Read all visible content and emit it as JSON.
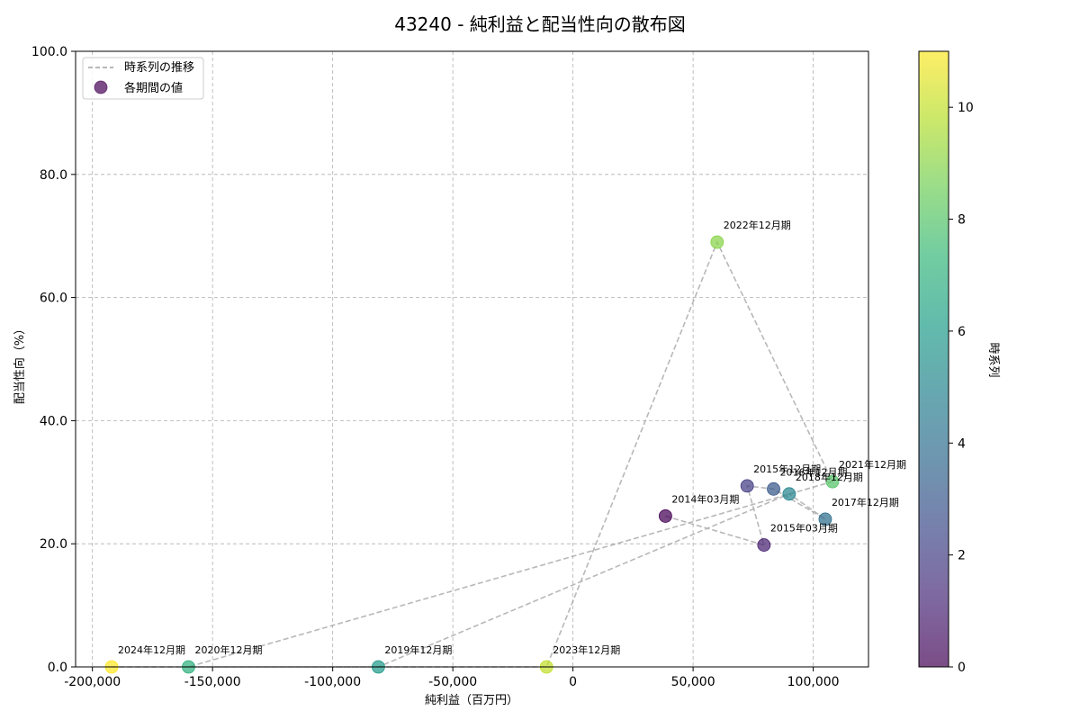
{
  "chart_data": {
    "type": "scatter",
    "title": "43240 - 純利益と配当性向の散布図",
    "xlabel": "純利益（百万円）",
    "ylabel": "配当性向（%）",
    "xlim": [
      -207000,
      123000
    ],
    "ylim": [
      0,
      100
    ],
    "xticks": [
      -200000,
      -150000,
      -100000,
      -50000,
      0,
      50000,
      100000
    ],
    "xtick_labels": [
      "-200,000",
      "-150,000",
      "-100,000",
      "-50,000",
      "0",
      "50,000",
      "100,000"
    ],
    "yticks": [
      0,
      20,
      40,
      60,
      80,
      100
    ],
    "ytick_labels": [
      "0.0",
      "20.0",
      "40.0",
      "60.0",
      "80.0",
      "100.0"
    ],
    "grid": true,
    "legend": {
      "placement": "top-left",
      "line_label": "時系列の推移",
      "marker_label": "各期間の値"
    },
    "colorbar": {
      "label": "時系列",
      "range": [
        0,
        11
      ],
      "ticks": [
        0,
        2,
        4,
        6,
        8,
        10
      ],
      "tick_labels": [
        "0",
        "2",
        "4",
        "6",
        "8",
        "10"
      ],
      "colormap": "viridis"
    },
    "points": [
      {
        "label": "2014年03月期",
        "x": 38500,
        "y": 24.5,
        "t": 0
      },
      {
        "label": "2015年03月期",
        "x": 79500,
        "y": 19.8,
        "t": 1
      },
      {
        "label": "2015年12月期",
        "x": 72500,
        "y": 29.4,
        "t": 2
      },
      {
        "label": "2016年12月期",
        "x": 83500,
        "y": 28.9,
        "t": 3
      },
      {
        "label": "2017年12月期",
        "x": 105000,
        "y": 24.0,
        "t": 4
      },
      {
        "label": "2018年12月期",
        "x": 90000,
        "y": 28.1,
        "t": 5
      },
      {
        "label": "2019年12月期",
        "x": -81000,
        "y": 0.0,
        "t": 6
      },
      {
        "label": "2020年12月期",
        "x": -160000,
        "y": 0.0,
        "t": 7
      },
      {
        "label": "2021年12月期",
        "x": 108000,
        "y": 30.1,
        "t": 8
      },
      {
        "label": "2022年12月期",
        "x": 60000,
        "y": 69.0,
        "t": 9
      },
      {
        "label": "2023年12月期",
        "x": -11000,
        "y": 0.0,
        "t": 10
      },
      {
        "label": "2024年12月期",
        "x": -192000,
        "y": 0.0,
        "t": 11
      }
    ]
  }
}
